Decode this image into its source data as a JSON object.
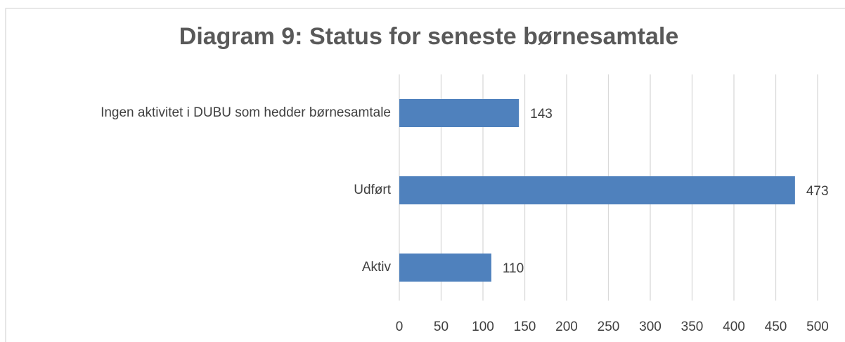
{
  "chart_data": {
    "type": "bar",
    "orientation": "horizontal",
    "title": "Diagram 9: Status for seneste børnesamtale",
    "categories": [
      "Ingen aktivitet i DUBU som hedder børnesamtale",
      "Udført",
      "Aktiv"
    ],
    "values": [
      143,
      473,
      110
    ],
    "color": "#4f81bd",
    "xlim": [
      0,
      500
    ],
    "xticks": [
      0,
      50,
      100,
      150,
      200,
      250,
      300,
      350,
      400,
      450,
      500
    ],
    "grid": true
  }
}
